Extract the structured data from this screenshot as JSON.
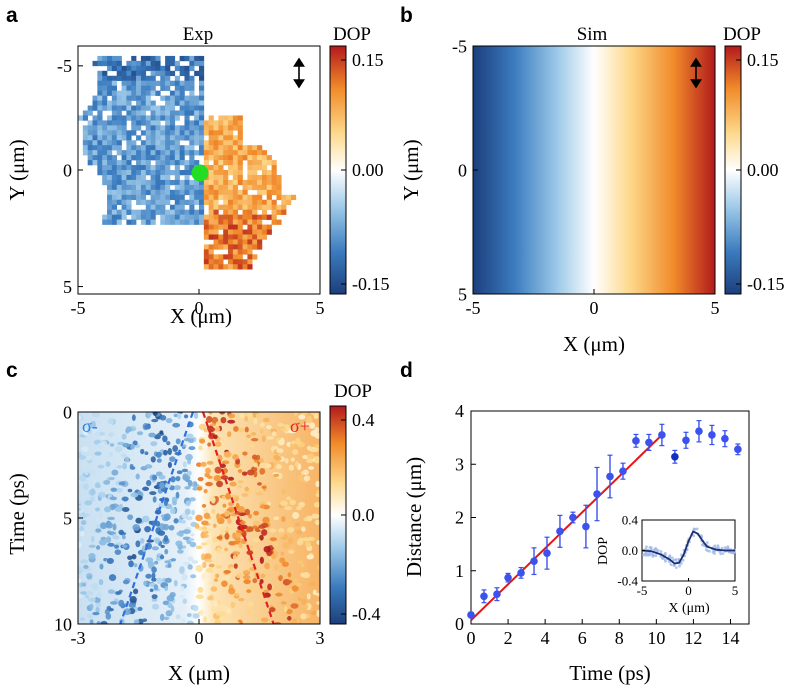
{
  "panels": {
    "a": {
      "label": "a",
      "title": "Exp",
      "colorbar_title": "DOP"
    },
    "b": {
      "label": "b",
      "title": "Sim",
      "colorbar_title": "DOP"
    },
    "c": {
      "label": "c",
      "colorbar_title": "DOP",
      "sigma_minus": "σ-",
      "sigma_plus": "σ+"
    },
    "d": {
      "label": "d"
    }
  },
  "colors": {
    "diverging": [
      "#1c3f7c",
      "#3a7bbf",
      "#9ecae9",
      "#ffffff",
      "#fdd88a",
      "#f18a2a",
      "#b21a1c"
    ],
    "spot": "#22dd22",
    "data_points": "#3b52ee",
    "fit_line": "#e51515",
    "dash_blue": "#2f6fe0",
    "dash_red": "#e02020",
    "sigma_minus_text": "#2a7fe0",
    "sigma_plus_text": "#e52222"
  },
  "icons": {
    "polarization_arrow": "double-arrow-vertical-icon"
  },
  "chart_data": [
    {
      "id": "a",
      "type": "heatmap",
      "title": "Exp",
      "xlabel": "X (μm)",
      "ylabel": "Y (μm)",
      "xlim": [
        -5,
        5
      ],
      "ylim": [
        5,
        -5
      ],
      "xticks": [
        "-5",
        "0",
        "5"
      ],
      "yticks": [
        "-5",
        "0",
        "5"
      ],
      "colorbar": {
        "label": "DOP",
        "range": [
          -0.15,
          0.15
        ],
        "ticks": [
          "0.15",
          "0.00",
          "-0.15"
        ]
      },
      "notes": "Measured DOP map: negative (blue) for X<0, positive (orange/red) for X>0, green excitation spot at (0,0)"
    },
    {
      "id": "b",
      "type": "heatmap",
      "title": "Sim",
      "xlabel": "X (μm)",
      "ylabel": "Y (μm)",
      "xlim": [
        -5,
        5
      ],
      "ylim": [
        5,
        -5
      ],
      "xticks": [
        "-5",
        "0",
        "5"
      ],
      "yticks": [
        "-5",
        "0",
        "5"
      ],
      "colorbar": {
        "label": "DOP",
        "range": [
          -0.15,
          0.15
        ],
        "ticks": [
          "0.15",
          "0.00",
          "-0.15"
        ]
      },
      "dop_vs_x": {
        "x": [
          -5,
          0,
          5
        ],
        "dop": [
          -0.15,
          0.0,
          0.15
        ]
      }
    },
    {
      "id": "c",
      "type": "heatmap",
      "xlabel": "X (μm)",
      "ylabel": "Time (ps)",
      "xlim": [
        -3,
        3
      ],
      "ylim": [
        10,
        0
      ],
      "xticks": [
        "-3",
        "0",
        "3"
      ],
      "yticks": [
        "0",
        "5",
        "10"
      ],
      "colorbar": {
        "label": "DOP",
        "range": [
          -0.4,
          0.4
        ],
        "ticks": [
          "0.4",
          "0.0",
          "-0.4"
        ]
      },
      "dashed_lines": [
        {
          "name": "σ-",
          "x": [
            -0.15,
            -1.95
          ],
          "t": [
            0,
            10
          ]
        },
        {
          "name": "σ+",
          "x": [
            0.1,
            1.85
          ],
          "t": [
            0,
            10
          ]
        }
      ]
    },
    {
      "id": "d",
      "type": "scatter",
      "xlabel": "Time (ps)",
      "ylabel": "Distance (μm)",
      "xlim": [
        0,
        15
      ],
      "ylim": [
        0,
        4
      ],
      "xticks": [
        "0",
        "2",
        "4",
        "6",
        "8",
        "10",
        "12",
        "14"
      ],
      "yticks": [
        "0",
        "1",
        "2",
        "3",
        "4"
      ],
      "series": [
        {
          "x": [
            0.0,
            0.7,
            1.4,
            2.0,
            2.7,
            3.4,
            4.1,
            4.8,
            5.5,
            6.2,
            6.8,
            7.5,
            8.2,
            8.9,
            9.6,
            10.3,
            11.0,
            11.6,
            12.3,
            13.0,
            13.7,
            14.4
          ],
          "y": [
            0.17,
            0.52,
            0.56,
            0.87,
            0.96,
            1.18,
            1.33,
            1.74,
            2.0,
            1.83,
            2.44,
            2.77,
            2.87,
            3.44,
            3.41,
            3.55,
            3.14,
            3.45,
            3.62,
            3.55,
            3.48,
            3.28
          ],
          "err": [
            0.05,
            0.12,
            0.12,
            0.08,
            0.1,
            0.25,
            0.3,
            0.3,
            0.1,
            0.4,
            0.5,
            0.4,
            0.15,
            0.12,
            0.15,
            0.2,
            0.12,
            0.15,
            0.2,
            0.18,
            0.15,
            0.1
          ]
        }
      ],
      "fit_line": {
        "x": [
          0,
          10.3
        ],
        "y": [
          0.07,
          3.55
        ]
      },
      "inset": {
        "xlabel": "X (μm)",
        "ylabel": "DOP",
        "xlim": [
          -5,
          5
        ],
        "ylim": [
          -0.4,
          0.4
        ],
        "xticks": [
          "-5",
          "0",
          "5"
        ],
        "yticks": [
          "0.4",
          "0.0",
          "-0.4"
        ],
        "curve": {
          "x": [
            -5,
            -4,
            -3,
            -2,
            -1.5,
            -1,
            -0.5,
            0,
            0.5,
            1,
            1.5,
            2,
            3,
            4,
            5
          ],
          "y": [
            0.0,
            -0.01,
            -0.05,
            -0.12,
            -0.17,
            -0.16,
            -0.05,
            0.12,
            0.25,
            0.22,
            0.13,
            0.05,
            0.01,
            0.0,
            0.0
          ]
        }
      }
    }
  ]
}
